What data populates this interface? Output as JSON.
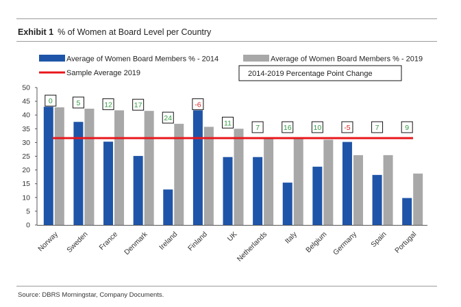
{
  "exhibit": {
    "label": "Exhibit 1",
    "title": "% of Women at Board Level per Country",
    "source": "Source: DBRS Morningstar, Company Documents."
  },
  "colors": {
    "bar2014": "#1f55a8",
    "bar2019": "#a8a8a8",
    "average": "#e8161b",
    "positive": "#2e9a3e",
    "negative": "#d9231e"
  },
  "chart_data": {
    "type": "bar",
    "categories": [
      "Norway",
      "Sweden",
      "France",
      "Denmark",
      "Ireland",
      "Finland",
      "UK",
      "Netherlands",
      "Italy",
      "Belgium",
      "Germany",
      "Spain",
      "Portugal"
    ],
    "series": [
      {
        "name": "Average of Women Board Members % - 2014",
        "values": [
          43,
          37.5,
          30.3,
          25.1,
          12.9,
          41.7,
          24.7,
          24.7,
          15.4,
          21.2,
          30.2,
          18.2,
          9.8
        ]
      },
      {
        "name": "Average of Women Board Members % - 2019",
        "values": [
          42.8,
          42.3,
          41.7,
          41.5,
          36.8,
          35.7,
          35.0,
          31.5,
          31.3,
          31.0,
          25.4,
          25.4,
          18.7
        ]
      }
    ],
    "average": {
      "name": "Sample Average 2019",
      "value": 31.6
    },
    "changes": {
      "name": "2014-2019 Percentage Point Change",
      "values": [
        "0",
        "5",
        "12",
        "17",
        "24",
        "-6",
        "11",
        "7",
        "16",
        "10",
        "-5",
        "7",
        "9"
      ]
    },
    "ylim": [
      0,
      50
    ],
    "yticks": [
      "0",
      "5",
      "10",
      "15",
      "20",
      "25",
      "30",
      "35",
      "40",
      "45",
      "50"
    ],
    "grid": false,
    "legend_position": "top"
  }
}
